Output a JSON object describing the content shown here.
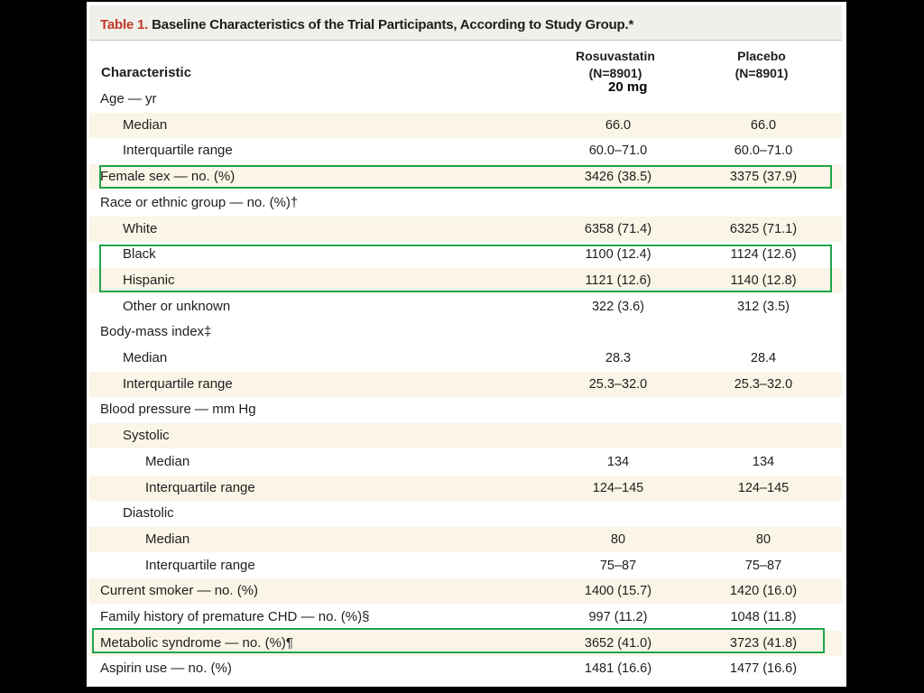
{
  "table": {
    "title_num": "Table 1.",
    "title_text": " Baseline Characteristics of the Trial Participants, According to Study Group.*",
    "characteristic_header": "Characteristic",
    "col1": {
      "name": "Rosuvastatin",
      "n": "(N=8901)"
    },
    "col2": {
      "name": "Placebo",
      "n": "(N=8901)"
    },
    "annotation": "20 mg",
    "rows": [
      {
        "label": "Age — yr",
        "indent": 0,
        "v1": "",
        "v2": "",
        "shade": false
      },
      {
        "label": "Median",
        "indent": 1,
        "v1": "66.0",
        "v2": "66.0",
        "shade": true
      },
      {
        "label": "Interquartile range",
        "indent": 1,
        "v1": "60.0–71.0",
        "v2": "60.0–71.0",
        "shade": false
      },
      {
        "label": "Female sex — no. (%)",
        "indent": 0,
        "v1": "3426 (38.5)",
        "v2": "3375 (37.9)",
        "shade": true
      },
      {
        "label": "Race or ethnic group — no. (%)†",
        "indent": 0,
        "v1": "",
        "v2": "",
        "shade": false
      },
      {
        "label": "White",
        "indent": 1,
        "v1": "6358 (71.4)",
        "v2": "6325 (71.1)",
        "shade": true
      },
      {
        "label": "Black",
        "indent": 1,
        "v1": "1100 (12.4)",
        "v2": "1124 (12.6)",
        "shade": false
      },
      {
        "label": "Hispanic",
        "indent": 1,
        "v1": "1121 (12.6)",
        "v2": "1140 (12.8)",
        "shade": true
      },
      {
        "label": "Other or unknown",
        "indent": 1,
        "v1": "322 (3.6)",
        "v2": "312 (3.5)",
        "shade": false
      },
      {
        "label": "Body-mass index‡",
        "indent": 0,
        "v1": "",
        "v2": "",
        "shade": false
      },
      {
        "label": "Median",
        "indent": 1,
        "v1": "28.3",
        "v2": "28.4",
        "shade": false
      },
      {
        "label": "Interquartile range",
        "indent": 1,
        "v1": "25.3–32.0",
        "v2": "25.3–32.0",
        "shade": true
      },
      {
        "label": "Blood pressure — mm Hg",
        "indent": 0,
        "v1": "",
        "v2": "",
        "shade": false
      },
      {
        "label": "Systolic",
        "indent": 1,
        "v1": "",
        "v2": "",
        "shade": true
      },
      {
        "label": "Median",
        "indent": 2,
        "v1": "134",
        "v2": "134",
        "shade": false
      },
      {
        "label": "Interquartile range",
        "indent": 2,
        "v1": "124–145",
        "v2": "124–145",
        "shade": true
      },
      {
        "label": "Diastolic",
        "indent": 1,
        "v1": "",
        "v2": "",
        "shade": false
      },
      {
        "label": "Median",
        "indent": 2,
        "v1": "80",
        "v2": "80",
        "shade": true
      },
      {
        "label": "Interquartile range",
        "indent": 2,
        "v1": "75–87",
        "v2": "75–87",
        "shade": false
      },
      {
        "label": "Current smoker — no. (%)",
        "indent": 0,
        "v1": "1400 (15.7)",
        "v2": "1420 (16.0)",
        "shade": true
      },
      {
        "label": "Family history of premature CHD — no. (%)§",
        "indent": 0,
        "v1": "997 (11.2)",
        "v2": "1048 (11.8)",
        "shade": false
      },
      {
        "label": "Metabolic syndrome — no. (%)¶",
        "indent": 0,
        "v1": "3652 (41.0)",
        "v2": "3723 (41.8)",
        "shade": true
      },
      {
        "label": "Aspirin use — no. (%)",
        "indent": 0,
        "v1": "1481 (16.6)",
        "v2": "1477 (16.6)",
        "shade": false
      }
    ]
  },
  "highlight_color": "#1fa64a"
}
